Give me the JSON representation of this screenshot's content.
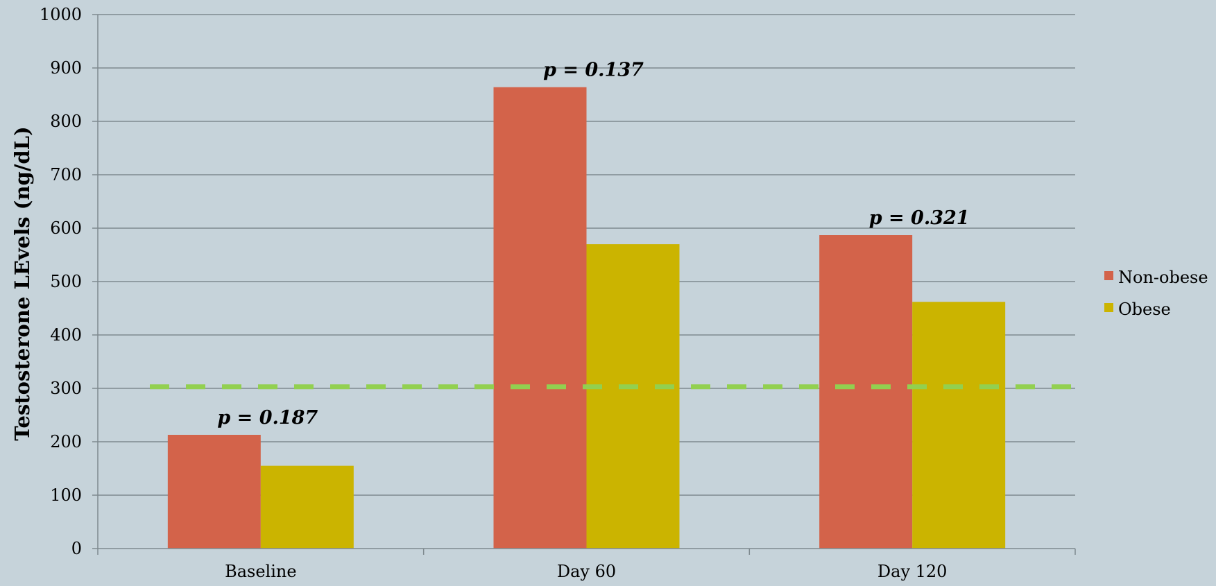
{
  "chart_data": {
    "type": "bar",
    "title": "",
    "xlabel": "",
    "ylabel": "Testosterone LEvels (ng/dL)",
    "categories": [
      "Baseline",
      "Day 60",
      "Day 120"
    ],
    "ylim": [
      0,
      1000
    ],
    "yticks": [
      0,
      100,
      200,
      300,
      400,
      500,
      600,
      700,
      800,
      900,
      1000
    ],
    "grid": true,
    "legend_position": "right",
    "series": [
      {
        "name": "Non-obese",
        "color": "#d3634a",
        "values": [
          213,
          864,
          587
        ]
      },
      {
        "name": "Obese",
        "color": "#cbb400",
        "values": [
          155,
          570,
          462
        ]
      }
    ],
    "reference_line": {
      "value": 303,
      "color": "#92d050",
      "style": "dashed"
    },
    "annotations": [
      {
        "category": "Baseline",
        "text": "p = 0.187"
      },
      {
        "category": "Day 60",
        "text": "p = 0.137"
      },
      {
        "category": "Day 120",
        "text": "p = 0.321"
      }
    ]
  }
}
